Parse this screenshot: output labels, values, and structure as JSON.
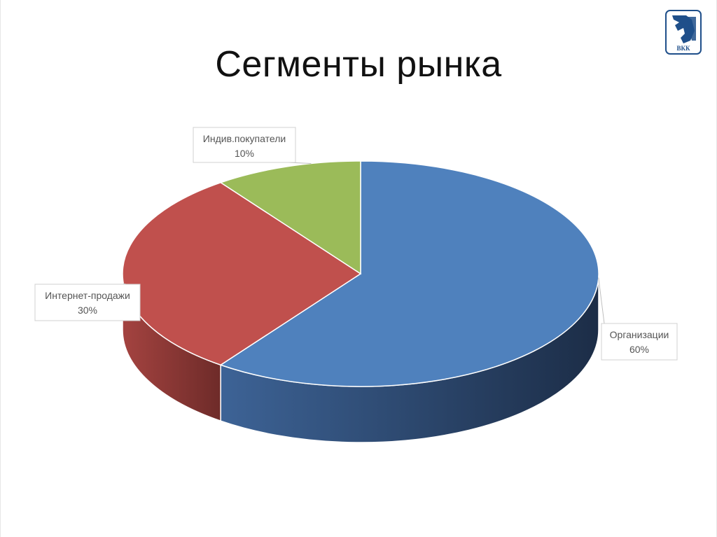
{
  "slide": {
    "title": "Сегменты рынка"
  },
  "logo": {
    "text": "ВКК",
    "color": "#1f4f8a"
  },
  "chart_data": {
    "type": "pie",
    "title": "",
    "three_d": true,
    "categories": [
      "Организации",
      "Интернет-продажи",
      "Индив.покупатели"
    ],
    "values": [
      60,
      30,
      10
    ],
    "data_labels": [
      "60%",
      "30%",
      "10%"
    ],
    "colors": {
      "Организации": "#4f81bd",
      "Интернет-продажи": "#c0504d",
      "Индив.покупатели": "#9bbb59"
    },
    "legend": "none"
  }
}
